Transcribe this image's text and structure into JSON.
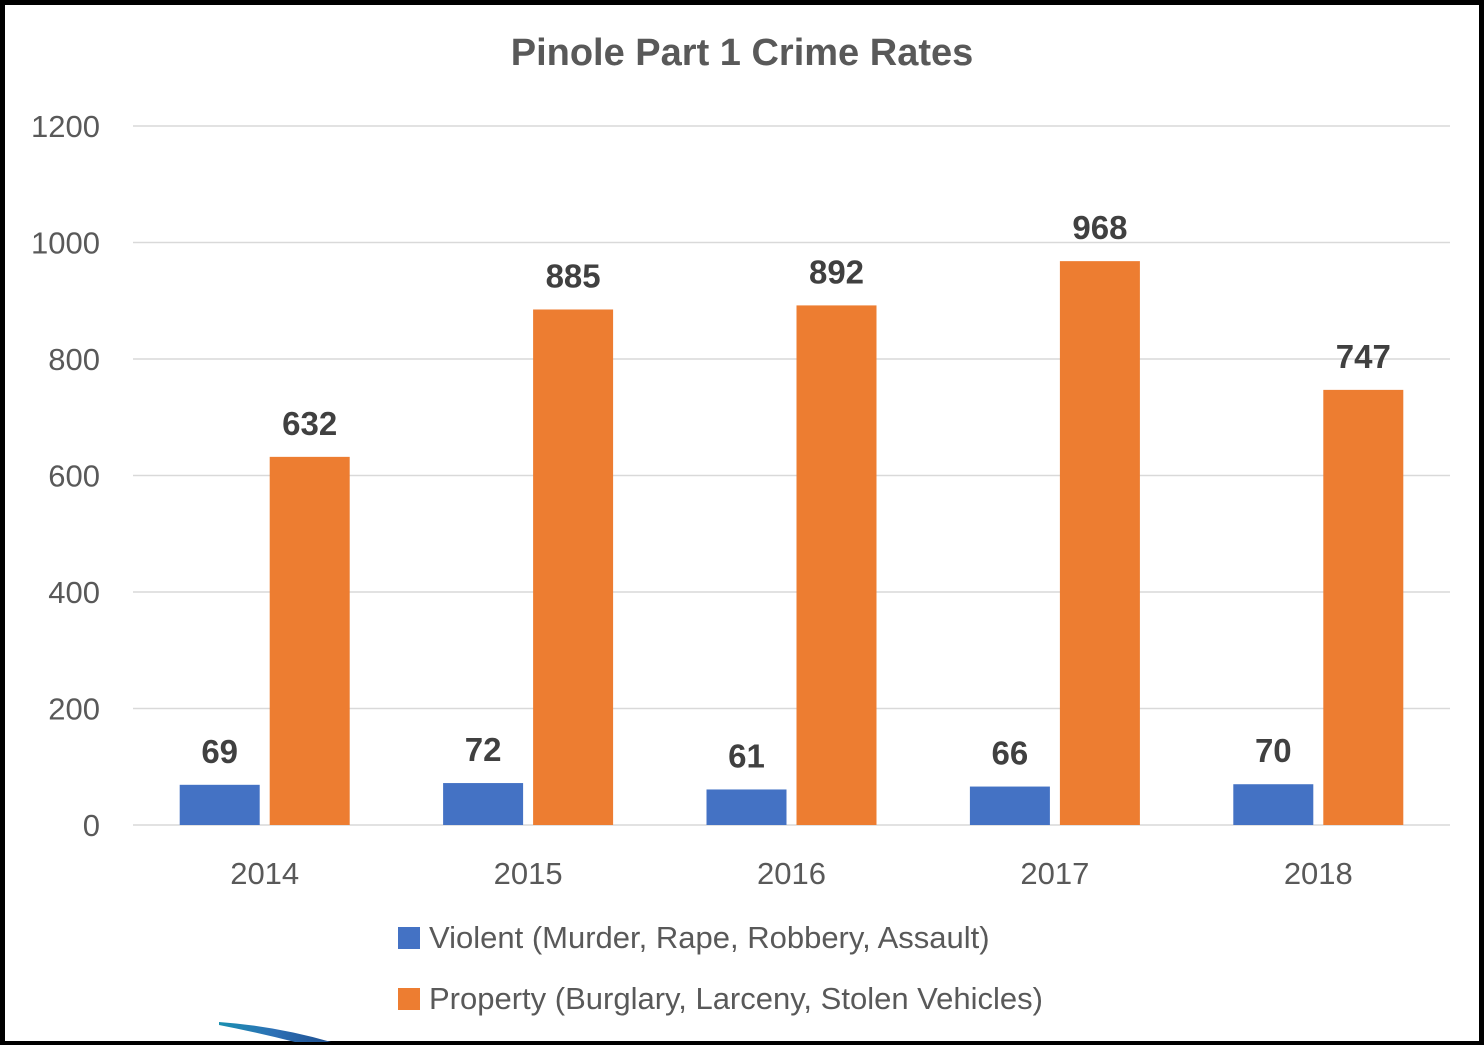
{
  "chart_data": {
    "type": "bar",
    "title": "Pinole Part 1 Crime Rates",
    "xlabel": "",
    "ylabel": "",
    "categories": [
      "2014",
      "2015",
      "2016",
      "2017",
      "2018"
    ],
    "ylim": [
      0,
      1200
    ],
    "yticks": [
      "0",
      "200",
      "400",
      "600",
      "800",
      "1000",
      "1200"
    ],
    "grid": true,
    "legend_position": "bottom",
    "series": [
      {
        "name": "Violent (Murder, Rape, Robbery, Assault)",
        "color": "#4472C4",
        "values": [
          69,
          72,
          61,
          66,
          70
        ]
      },
      {
        "name": "Property (Burglary, Larceny, Stolen Vehicles)",
        "color": "#ED7D31",
        "values": [
          632,
          885,
          892,
          968,
          747
        ]
      }
    ]
  }
}
